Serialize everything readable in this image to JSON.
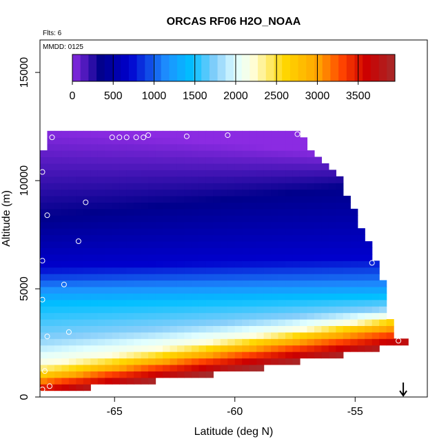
{
  "chart_data": {
    "type": "heatmap",
    "title": "ORCAS RF06 H2O_NOAA",
    "subtitle_flts": "Flts: 6",
    "subtitle_mmdd": "MMDD: 0125",
    "xlabel": "Latitude (deg N)",
    "ylabel": "Altitude (m)",
    "xlim": [
      -68.1,
      -52.0
    ],
    "ylim": [
      0,
      16500
    ],
    "x_ticks": [
      -65,
      -60,
      -55
    ],
    "x_tick_labels": [
      "-65",
      "-60",
      "-55"
    ],
    "y_ticks": [
      0,
      5000,
      10000,
      15000
    ],
    "y_tick_labels": [
      "0",
      "5000",
      "10000",
      "15000"
    ],
    "colorbar": {
      "range": [
        0,
        3950
      ],
      "ticks": [
        0,
        500,
        1000,
        1500,
        2000,
        2500,
        3000,
        3500
      ],
      "tick_labels": [
        "0",
        "500",
        "1000",
        "1500",
        "2000",
        "2500",
        "3000",
        "3500"
      ],
      "colors": [
        "#8B2BE2",
        "#00008B",
        "#0000CD",
        "#1E90FF",
        "#00BFFF",
        "#87CEFA",
        "#E0FFFF",
        "#FFFFE0",
        "#FFD700",
        "#FFA500",
        "#FF4500",
        "#CC0000",
        "#A52A2A"
      ],
      "stops": [
        0,
        350,
        700,
        1150,
        1450,
        1750,
        2000,
        2200,
        2600,
        3000,
        3300,
        3600,
        3950
      ]
    },
    "field": {
      "lat_range": [
        -68.1,
        -52.8
      ],
      "upper_edge": [
        [
          -68.1,
          10500
        ],
        [
          -67.8,
          12200
        ],
        [
          -57.4,
          12200
        ],
        [
          -55.6,
          10000
        ],
        [
          -54.8,
          8000
        ],
        [
          -54.2,
          6500
        ],
        [
          -53.7,
          5000
        ],
        [
          -53.6,
          3700
        ],
        [
          -53.3,
          2700
        ]
      ],
      "lower_edge": [
        [
          -53.3,
          2400
        ],
        [
          -54.8,
          2100
        ],
        [
          -56.4,
          1800
        ],
        [
          -58.0,
          1500
        ],
        [
          -59.8,
          1200
        ],
        [
          -61.4,
          1000
        ],
        [
          -63.0,
          800
        ],
        [
          -64.6,
          600
        ],
        [
          -66.1,
          450
        ],
        [
          -67.6,
          400
        ],
        [
          -68.1,
          400
        ]
      ],
      "profile_boundaries": [
        {
          "value": 0,
          "alt_south": 12500,
          "alt_north": 11000
        },
        {
          "value": 350,
          "alt_south": 8300,
          "alt_north": 10000
        },
        {
          "value": 700,
          "alt_south": 6000,
          "alt_north": 6500
        },
        {
          "value": 1150,
          "alt_south": 5000,
          "alt_north": 5200
        },
        {
          "value": 1450,
          "alt_south": 4300,
          "alt_north": 4700
        },
        {
          "value": 1750,
          "alt_south": 2700,
          "alt_north": 4200
        },
        {
          "value": 2000,
          "alt_south": 2000,
          "alt_north": 4000
        },
        {
          "value": 2200,
          "alt_south": 1500,
          "alt_north": 3800
        },
        {
          "value": 2600,
          "alt_south": 1100,
          "alt_north": 3600
        },
        {
          "value": 3000,
          "alt_south": 800,
          "alt_north": 3300
        },
        {
          "value": 3300,
          "alt_south": 600,
          "alt_north": 3000
        },
        {
          "value": 3600,
          "alt_south": 300,
          "alt_north": 2700
        },
        {
          "value": 3950,
          "alt_south": 0,
          "alt_north": 2300
        }
      ]
    },
    "observations": [
      {
        "lat": -67.6,
        "alt": 12000
      },
      {
        "lat": -65.1,
        "alt": 12000
      },
      {
        "lat": -64.8,
        "alt": 12000
      },
      {
        "lat": -64.5,
        "alt": 12000
      },
      {
        "lat": -64.1,
        "alt": 12000
      },
      {
        "lat": -63.8,
        "alt": 12000
      },
      {
        "lat": -63.6,
        "alt": 12100
      },
      {
        "lat": -62.0,
        "alt": 12050
      },
      {
        "lat": -60.3,
        "alt": 12100
      },
      {
        "lat": -57.4,
        "alt": 12150
      },
      {
        "lat": -68.0,
        "alt": 10400
      },
      {
        "lat": -66.2,
        "alt": 9000
      },
      {
        "lat": -67.8,
        "alt": 8400
      },
      {
        "lat": -66.5,
        "alt": 7200
      },
      {
        "lat": -68.0,
        "alt": 6300
      },
      {
        "lat": -67.1,
        "alt": 5200
      },
      {
        "lat": -68.0,
        "alt": 4500
      },
      {
        "lat": -66.9,
        "alt": 3000
      },
      {
        "lat": -67.8,
        "alt": 2800
      },
      {
        "lat": -67.9,
        "alt": 1200
      },
      {
        "lat": -67.7,
        "alt": 500
      },
      {
        "lat": -68.0,
        "alt": 350
      },
      {
        "lat": -54.3,
        "alt": 6200
      },
      {
        "lat": -53.2,
        "alt": 2600
      }
    ],
    "arrow_marker": {
      "lat": -53.0,
      "direction": "down"
    },
    "grid": false
  }
}
